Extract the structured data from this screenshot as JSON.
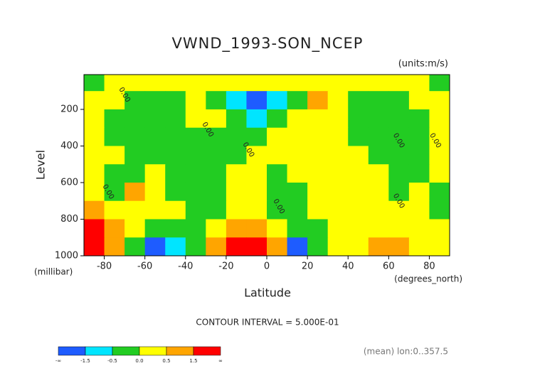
{
  "chart_data": {
    "type": "contour",
    "title": "VWND_1993-SON_NCEP",
    "units": "(units:m/s)",
    "x_label": "Latitude",
    "x_units": "(degrees_north)",
    "y_label": "Level",
    "y_units": "(millibar)",
    "contour_interval": "CONTOUR INTERVAL = 5.000E-01",
    "footnote": "(mean) lon:0..357.5",
    "xlim": [
      -90,
      90
    ],
    "ylim": [
      1000,
      10
    ],
    "xticks": [
      -80,
      -60,
      -40,
      -20,
      0,
      20,
      40,
      60,
      80
    ],
    "yticks": [
      200,
      400,
      600,
      800,
      1000
    ],
    "x": [
      -85,
      -75,
      -65,
      -55,
      -45,
      -35,
      -25,
      -15,
      -5,
      5,
      15,
      25,
      35,
      45,
      55,
      65,
      75,
      85
    ],
    "y": [
      50,
      150,
      250,
      350,
      450,
      550,
      650,
      750,
      850,
      950
    ],
    "z": [
      [
        -0.2,
        0.2,
        0.2,
        0.2,
        0.2,
        0.2,
        0.2,
        0.2,
        0.2,
        0.2,
        0.2,
        0.2,
        0.2,
        0.2,
        0.2,
        0.2,
        0.2,
        -0.2
      ],
      [
        0.2,
        0.2,
        -0.2,
        -0.2,
        -0.2,
        0.2,
        -0.3,
        -0.8,
        -1.8,
        -1.2,
        -0.3,
        0.8,
        0.2,
        -0.2,
        -0.2,
        -0.2,
        0.2,
        0.2
      ],
      [
        0.2,
        -0.2,
        -0.2,
        -0.2,
        -0.2,
        0.2,
        0.2,
        -0.3,
        -0.6,
        -0.4,
        0.2,
        0.2,
        0.2,
        -0.2,
        -0.2,
        -0.2,
        -0.2,
        0.2
      ],
      [
        0.2,
        -0.2,
        -0.2,
        -0.2,
        -0.2,
        -0.2,
        -0.2,
        -0.2,
        -0.2,
        0.2,
        0.2,
        0.2,
        0.2,
        -0.2,
        -0.2,
        -0.2,
        -0.2,
        0.2
      ],
      [
        0.2,
        0.2,
        -0.2,
        -0.2,
        -0.2,
        -0.2,
        -0.2,
        -0.2,
        0.2,
        0.2,
        0.2,
        0.2,
        0.2,
        0.2,
        -0.2,
        -0.2,
        -0.2,
        0.2
      ],
      [
        0.2,
        -0.2,
        -0.2,
        0.2,
        -0.2,
        -0.2,
        -0.2,
        0.2,
        0.2,
        -0.2,
        0.2,
        0.2,
        0.2,
        0.2,
        0.2,
        -0.2,
        -0.2,
        0.2
      ],
      [
        0.2,
        -0.3,
        0.8,
        0.2,
        -0.2,
        -0.2,
        -0.2,
        0.2,
        0.2,
        -0.2,
        -0.2,
        0.2,
        0.2,
        0.2,
        0.2,
        -0.2,
        0.2,
        -0.2
      ],
      [
        0.8,
        0.2,
        0.2,
        0.2,
        0.2,
        -0.2,
        -0.2,
        0.2,
        0.2,
        -0.2,
        -0.2,
        0.2,
        0.2,
        0.2,
        0.2,
        0.2,
        0.2,
        -0.2
      ],
      [
        1.8,
        0.8,
        0.2,
        -0.2,
        -0.3,
        -0.2,
        0.2,
        0.8,
        0.8,
        0.2,
        -0.3,
        -0.2,
        0.2,
        0.2,
        0.2,
        0.2,
        0.2,
        0.2
      ],
      [
        1.8,
        1.0,
        -0.3,
        -1.8,
        -0.8,
        -0.2,
        0.8,
        1.8,
        1.8,
        0.8,
        -1.6,
        -0.3,
        0.2,
        0.2,
        0.8,
        0.8,
        0.2,
        0.2
      ]
    ],
    "levels": [
      {
        "value": -1000000000.0,
        "label": "-∞"
      },
      -1.5,
      -0.5,
      {
        "value": 0,
        "label": "0.0"
      },
      0.5,
      1.5,
      {
        "value": 1000000000.0,
        "label": "∞"
      }
    ],
    "colors": [
      "#1e5cff",
      "#00e5ff",
      "#22cc22",
      "#ffff00",
      "#ffa500",
      "#ff0000"
    ],
    "annotations": [
      {
        "text": "0.00",
        "x": -70,
        "y": 120
      },
      {
        "text": "0.00",
        "x": -29,
        "y": 310
      },
      {
        "text": "0.00",
        "x": -9,
        "y": 420
      },
      {
        "text": "0.00",
        "x": -78,
        "y": 650
      },
      {
        "text": "0.00",
        "x": 6,
        "y": 730
      },
      {
        "text": "0.00",
        "x": 65,
        "y": 370
      },
      {
        "text": "0.00",
        "x": 83,
        "y": 370
      },
      {
        "text": "0.00",
        "x": 65,
        "y": 700
      }
    ]
  }
}
